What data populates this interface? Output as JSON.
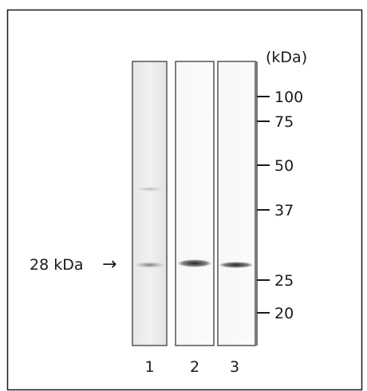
{
  "figure": {
    "unit_label": "(kDa)",
    "band_label": "28 kDa",
    "band_arrow": "→",
    "markers": [
      {
        "label": "100",
        "kda": 100
      },
      {
        "label": "75",
        "kda": 75
      },
      {
        "label": "50",
        "kda": 50
      },
      {
        "label": "37",
        "kda": 37
      },
      {
        "label": "25",
        "kda": 25
      },
      {
        "label": "20",
        "kda": 20
      }
    ],
    "lanes": [
      {
        "label": "1"
      },
      {
        "label": "2"
      },
      {
        "label": "3"
      }
    ],
    "colors": {
      "frame": "#1a1a1a",
      "lane_border": "#555555",
      "band": "#222222"
    }
  }
}
